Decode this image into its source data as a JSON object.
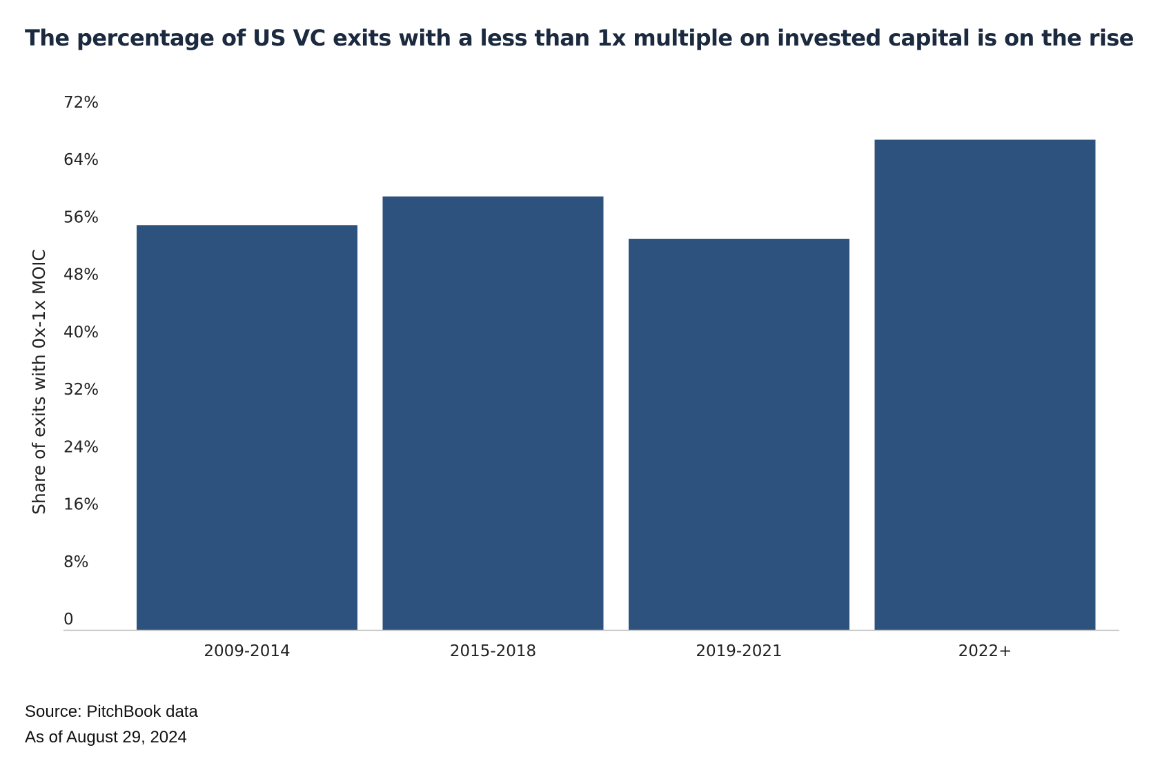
{
  "title": "The percentage of US VC exits with a less than 1x multiple on invested capital is on the rise",
  "footnotes": {
    "source": "Source: PitchBook data",
    "as_of": "As of August 29, 2024"
  },
  "colors": {
    "bar": "#2c527d",
    "axis": "#bdbdbd",
    "title": "#1b2a3f"
  },
  "chart_data": {
    "type": "bar",
    "categories": [
      "2009-2014",
      "2015-2018",
      "2019-2021",
      "2022+"
    ],
    "values": [
      56.4,
      60.4,
      54.5,
      68.3
    ],
    "ylabel": "Share of exits with 0x-1x MOIC",
    "xlabel": "",
    "ylim": [
      0,
      72
    ],
    "yticks": [
      0,
      8,
      16,
      24,
      32,
      40,
      48,
      56,
      64,
      72
    ],
    "ytick_labels": [
      "0",
      "8%",
      "16%",
      "24%",
      "32%",
      "40%",
      "48%",
      "56%",
      "64%",
      "72%"
    ],
    "grid": false,
    "legend": "none"
  }
}
